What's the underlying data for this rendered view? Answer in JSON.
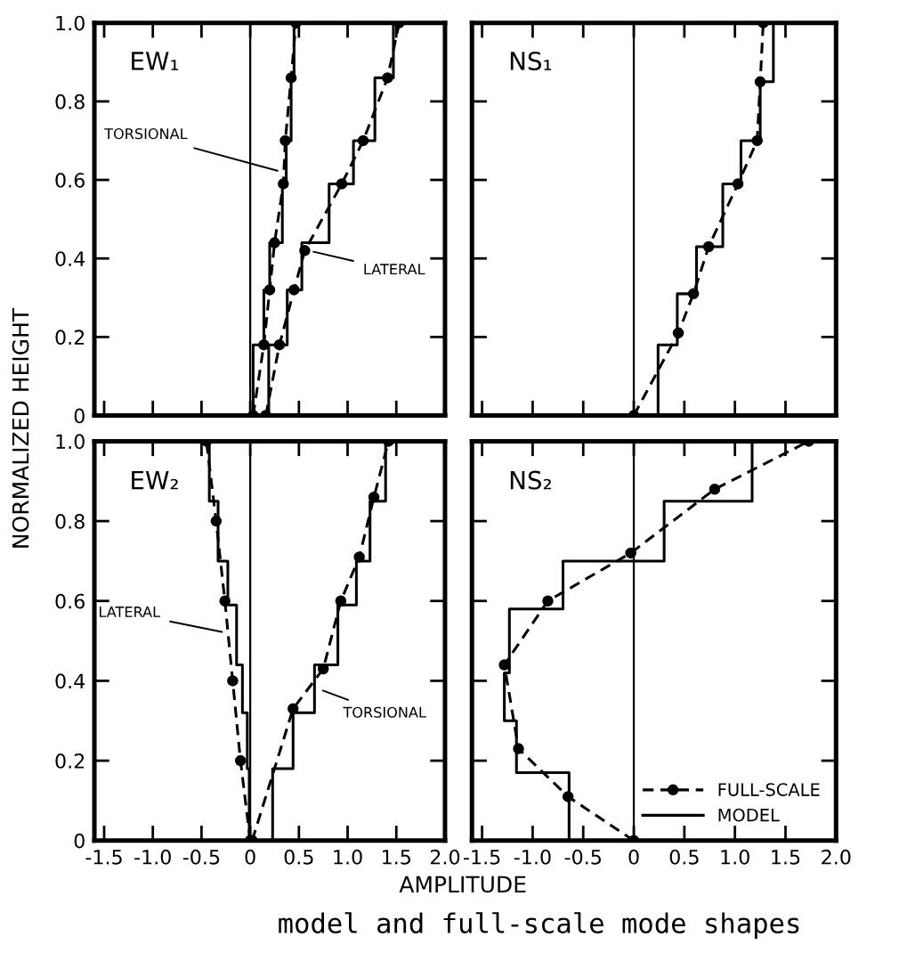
{
  "chart_data": [
    {
      "type": "line",
      "title": "EW₁",
      "ylabel": "NORMALIZED HEIGHT",
      "xlim": [
        -1.6,
        2.0
      ],
      "ylim": [
        0,
        1
      ],
      "xticks": [
        -1.5,
        -1,
        -0.5,
        0,
        0.5,
        1,
        1.5,
        2
      ],
      "yticks": [
        0,
        0.2,
        0.4,
        0.6,
        0.8,
        {
          "value": 1,
          "label": "1.0"
        }
      ],
      "tick_labels": "y",
      "legend": false,
      "ref_lines": [
        {
          "axis": "x",
          "value": 0,
          "color": "#000000"
        }
      ],
      "annotations": [
        {
          "text": "TORSIONAL",
          "x": 0.33,
          "y": 0.62
        },
        {
          "text": "LATERAL",
          "x": 0.6,
          "y": 0.42
        }
      ],
      "series": [
        {
          "color": "#000000",
          "marker": "none",
          "line_style": "solid",
          "x": [
            0.03,
            0.03,
            0.14,
            0.14,
            0.2,
            0.2,
            0.33,
            0.33,
            0.37,
            0.37,
            0.42,
            0.42,
            0.45,
            0.45
          ],
          "values": [
            0,
            0.18,
            0.18,
            0.32,
            0.32,
            0.44,
            0.44,
            0.59,
            0.59,
            0.7,
            0.7,
            0.86,
            0.86,
            1.0
          ]
        },
        {
          "color": "#000000",
          "marker": "circle",
          "line_style": "dashed",
          "x": [
            0.03,
            0.14,
            0.2,
            0.25,
            0.34,
            0.36,
            0.42,
            0.47
          ],
          "values": [
            0,
            0.18,
            0.32,
            0.44,
            0.59,
            0.7,
            0.86,
            1.0
          ]
        },
        {
          "color": "#000000",
          "marker": "none",
          "line_style": "solid",
          "x": [
            0.19,
            0.19,
            0.38,
            0.38,
            0.53,
            0.53,
            0.81,
            0.81,
            1.06,
            1.06,
            1.28,
            1.28,
            1.47,
            1.47
          ],
          "values": [
            0,
            0.18,
            0.18,
            0.32,
            0.32,
            0.44,
            0.44,
            0.59,
            0.59,
            0.7,
            0.7,
            0.86,
            0.86,
            1.0
          ]
        },
        {
          "color": "#000000",
          "marker": "circle",
          "line_style": "dashed",
          "x": [
            0.16,
            0.3,
            0.45,
            0.56,
            0.94,
            1.16,
            1.41,
            1.53
          ],
          "values": [
            0,
            0.18,
            0.32,
            0.42,
            0.59,
            0.7,
            0.86,
            1.0
          ]
        }
      ]
    },
    {
      "type": "line",
      "title": "NS₁",
      "xlim": [
        -1.6,
        2.0
      ],
      "ylim": [
        0,
        1
      ],
      "xticks": [
        -1.5,
        -1,
        -0.5,
        0,
        0.5,
        1,
        1.5,
        2
      ],
      "yticks": [
        0,
        0.2,
        0.4,
        0.6,
        0.8,
        1
      ],
      "tick_labels": false,
      "legend": false,
      "ref_lines": [
        {
          "axis": "x",
          "value": 0,
          "color": "#000000"
        }
      ],
      "series": [
        {
          "color": "#000000",
          "marker": "none",
          "line_style": "solid",
          "x": [
            0.24,
            0.24,
            0.43,
            0.43,
            0.62,
            0.62,
            0.88,
            0.88,
            1.06,
            1.06,
            1.25,
            1.25,
            1.38,
            1.38
          ],
          "values": [
            0,
            0.18,
            0.18,
            0.31,
            0.31,
            0.43,
            0.43,
            0.59,
            0.59,
            0.7,
            0.7,
            0.85,
            0.85,
            1.0
          ]
        },
        {
          "color": "#000000",
          "marker": "circle",
          "line_style": "dashed",
          "x": [
            0,
            0.44,
            0.59,
            0.74,
            1.03,
            1.22,
            1.25,
            1.28
          ],
          "values": [
            0,
            0.21,
            0.31,
            0.43,
            0.59,
            0.7,
            0.85,
            1.0
          ]
        }
      ]
    },
    {
      "type": "line",
      "title": "EW₂",
      "xlabel": "AMPLITUDE",
      "xlim": [
        -1.6,
        2.0
      ],
      "ylim": [
        0,
        1
      ],
      "xticks": [
        -1.5,
        {
          "value": -1,
          "label": "-1.0"
        },
        -0.5,
        0,
        0.5,
        {
          "value": 1,
          "label": "1.0"
        },
        1.5,
        {
          "value": 2,
          "label": "2.0"
        }
      ],
      "yticks": [
        0,
        0.2,
        0.4,
        0.6,
        0.8,
        {
          "value": 1,
          "label": "1.0"
        }
      ],
      "legend": false,
      "ref_lines": [
        {
          "axis": "x",
          "value": 0,
          "color": "#000000"
        }
      ],
      "annotations": [
        {
          "text": "LATERAL",
          "x": -0.24,
          "y": 0.52
        },
        {
          "text": "TORSIONAL",
          "x": 0.7,
          "y": 0.38
        },
        "model and full-scale mode shapes"
      ],
      "series": [
        {
          "color": "#000000",
          "marker": "none",
          "line_style": "solid",
          "x": [
            -0.01,
            -0.01,
            -0.03,
            -0.03,
            -0.08,
            -0.08,
            -0.14,
            -0.14,
            -0.23,
            -0.23,
            -0.33,
            -0.33,
            -0.42,
            -0.42
          ],
          "values": [
            0,
            0.18,
            0.18,
            0.32,
            0.32,
            0.44,
            0.44,
            0.59,
            0.59,
            0.7,
            0.7,
            0.85,
            0.85,
            1.0
          ]
        },
        {
          "color": "#000000",
          "marker": "circle",
          "line_style": "dashed",
          "x": [
            0,
            -0.1,
            -0.18,
            -0.26,
            -0.35,
            -0.45
          ],
          "values": [
            0,
            0.2,
            0.4,
            0.6,
            0.8,
            1.0
          ]
        },
        {
          "color": "#000000",
          "marker": "none",
          "line_style": "solid",
          "x": [
            0.23,
            0.23,
            0.44,
            0.44,
            0.66,
            0.66,
            0.9,
            0.9,
            1.09,
            1.09,
            1.23,
            1.23,
            1.39,
            1.39
          ],
          "values": [
            0,
            0.18,
            0.18,
            0.32,
            0.32,
            0.44,
            0.44,
            0.59,
            0.59,
            0.7,
            0.7,
            0.85,
            0.85,
            1.0
          ]
        },
        {
          "color": "#000000",
          "marker": "circle",
          "line_style": "dashed",
          "x": [
            0.02,
            0.44,
            0.75,
            0.93,
            1.12,
            1.27,
            1.42
          ],
          "values": [
            0,
            0.33,
            0.43,
            0.6,
            0.71,
            0.86,
            1.0
          ]
        }
      ]
    },
    {
      "type": "line",
      "title": "NS₂",
      "xlim": [
        -1.6,
        2.0
      ],
      "ylim": [
        0,
        1
      ],
      "xticks": [
        -1.5,
        {
          "value": -1,
          "label": "-1.0"
        },
        -0.5,
        0,
        0.5,
        {
          "value": 1,
          "label": "1.0"
        },
        1.5,
        {
          "value": 2,
          "label": "2.0"
        }
      ],
      "yticks": [
        0,
        0.2,
        0.4,
        0.6,
        0.8,
        1
      ],
      "tick_labels": "x",
      "legend": "lower right",
      "ref_lines": [
        {
          "axis": "x",
          "value": 0,
          "color": "#000000"
        }
      ],
      "series": [
        {
          "name": "FULL-SCALE",
          "color": "#000000",
          "marker": "circle",
          "line_style": "dashed",
          "x": [
            0,
            -0.65,
            -1.14,
            -1.28,
            -0.85,
            -0.03,
            0.8,
            1.73
          ],
          "values": [
            0,
            0.11,
            0.23,
            0.44,
            0.6,
            0.72,
            0.88,
            1.0
          ]
        },
        {
          "name": "MODEL",
          "color": "#000000",
          "marker": "none",
          "line_style": "solid",
          "x": [
            -0.64,
            -0.64,
            -1.16,
            -1.16,
            -1.28,
            -1.28,
            -1.23,
            -1.23,
            -0.7,
            -0.7,
            0.3,
            0.3,
            1.17,
            1.17
          ],
          "values": [
            0,
            0.17,
            0.17,
            0.3,
            0.3,
            0.42,
            0.42,
            0.58,
            0.58,
            0.7,
            0.7,
            0.85,
            0.85,
            1.0
          ]
        }
      ]
    }
  ]
}
